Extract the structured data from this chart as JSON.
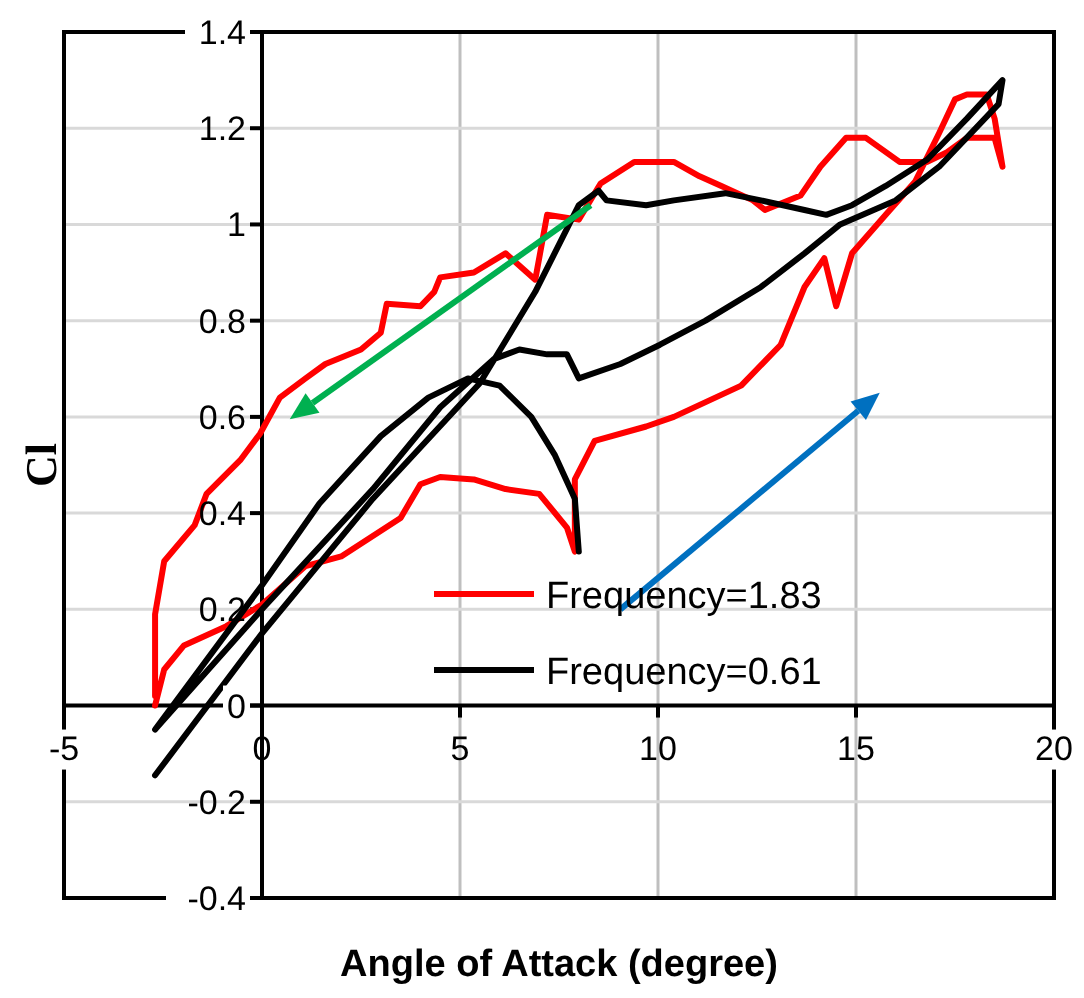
{
  "chart_data": {
    "type": "line",
    "xlabel": "Angle of Attack (degree)",
    "ylabel": "Cl",
    "xlim": [
      -5,
      20
    ],
    "ylim": [
      -0.4,
      1.4
    ],
    "xticks": [
      -5,
      0,
      5,
      10,
      15,
      20
    ],
    "yticks": [
      -0.4,
      -0.2,
      0,
      0.2,
      0.4,
      0.6,
      0.8,
      1,
      1.2,
      1.4
    ],
    "grid": true,
    "legend": "bottom right",
    "marker": "none",
    "line_style": "solid",
    "series": [
      {
        "name": "Frequency=1.83",
        "color": "#ff0000",
        "x": [
          -2.7,
          -2.47,
          -1.97,
          -0.9,
          0,
          1.1,
          2,
          3.5,
          4,
          4.5,
          5.35,
          6.15,
          7,
          7.7,
          7.9,
          7.9,
          8.4,
          9.7,
          10.4,
          12.1,
          13.1,
          13.7,
          14.2,
          14.5,
          14.9,
          15.75,
          16.5,
          17.1,
          17.5,
          17.8,
          18.3,
          18.5,
          18.7,
          18.5,
          17.8,
          17.3,
          16.8,
          16.1,
          15.25,
          14.75,
          14.1,
          13.6,
          12.7,
          12.4,
          11.6,
          11.05,
          10.4,
          9.4,
          8.55,
          8,
          7.2,
          6.9,
          6.15,
          5.35,
          4.5,
          4.35,
          4,
          3.15,
          3,
          2.5,
          1.6,
          1.1,
          0.45,
          -0.05,
          -0.55,
          -1.4,
          -1.7,
          -2.47,
          -2.7,
          -2.7
        ],
        "values": [
          0,
          0.075,
          0.125,
          0.165,
          0.21,
          0.29,
          0.31,
          0.39,
          0.46,
          0.475,
          0.47,
          0.45,
          0.44,
          0.37,
          0.32,
          0.47,
          0.55,
          0.58,
          0.6,
          0.665,
          0.75,
          0.87,
          0.93,
          0.83,
          0.94,
          1.02,
          1.09,
          1.19,
          1.26,
          1.27,
          1.27,
          1.22,
          1.12,
          1.18,
          1.18,
          1.15,
          1.13,
          1.13,
          1.18,
          1.18,
          1.12,
          1.06,
          1.03,
          1.05,
          1.08,
          1.1,
          1.13,
          1.13,
          1.085,
          1.01,
          1.02,
          0.885,
          0.94,
          0.9,
          0.89,
          0.86,
          0.83,
          0.835,
          0.775,
          0.74,
          0.71,
          0.68,
          0.64,
          0.565,
          0.51,
          0.44,
          0.375,
          0.3,
          0.19,
          0.02
        ]
      },
      {
        "name": "Frequency=0.61",
        "color": "#000000",
        "x": [
          -2.7,
          0,
          2.8,
          5.5,
          6.9,
          8,
          8.5,
          8.7,
          9.7,
          10.4,
          11.7,
          12.6,
          13.7,
          14.25,
          14.9,
          15.75,
          16.8,
          17.8,
          18.7,
          18.6,
          17.1,
          16,
          14.6,
          13.7,
          12.6,
          11.2,
          10.05,
          9.05,
          8,
          7.7,
          7.2,
          6.5,
          5.85,
          4.5,
          2.8,
          0,
          -2.7,
          -2.7,
          0,
          1.45,
          3,
          4.2,
          5.2,
          6,
          6.8,
          7.4,
          7.9,
          8
        ],
        "values": [
          -0.145,
          0.15,
          0.43,
          0.67,
          0.86,
          1.04,
          1.07,
          1.05,
          1.04,
          1.05,
          1.065,
          1.05,
          1.03,
          1.02,
          1.04,
          1.08,
          1.135,
          1.22,
          1.3,
          1.25,
          1.12,
          1.05,
          1,
          0.94,
          0.87,
          0.8,
          0.75,
          0.71,
          0.68,
          0.73,
          0.73,
          0.74,
          0.72,
          0.62,
          0.45,
          0.2,
          -0.05,
          -0.05,
          0.25,
          0.42,
          0.56,
          0.64,
          0.68,
          0.665,
          0.6,
          0.52,
          0.43,
          0.32
        ]
      }
    ]
  }
}
